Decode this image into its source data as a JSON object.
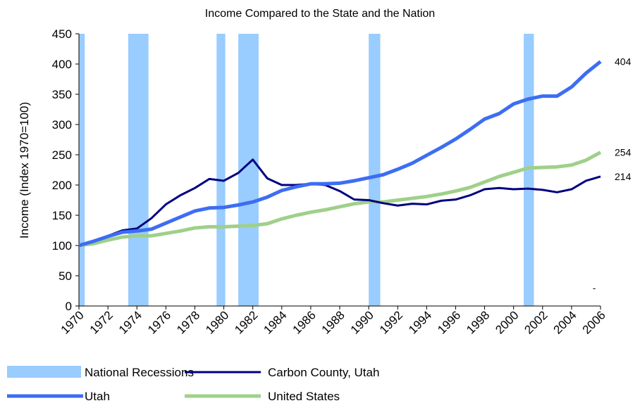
{
  "chart_data": {
    "type": "line",
    "title": "Income Compared to the State and the Nation",
    "y_label": "Income (Index 1970=100)",
    "x": [
      1970,
      1971,
      1972,
      1973,
      1974,
      1975,
      1976,
      1977,
      1978,
      1979,
      1980,
      1981,
      1982,
      1983,
      1984,
      1985,
      1986,
      1987,
      1988,
      1989,
      1990,
      1991,
      1992,
      1993,
      1994,
      1995,
      1996,
      1997,
      1998,
      1999,
      2000,
      2001,
      2002,
      2003,
      2004,
      2005,
      2006
    ],
    "xlim": [
      1970,
      2006
    ],
    "xticks": [
      1970,
      1972,
      1974,
      1976,
      1978,
      1980,
      1982,
      1984,
      1986,
      1988,
      1990,
      1992,
      1994,
      1996,
      1998,
      2000,
      2002,
      2004,
      2006
    ],
    "ylim": [
      0,
      450
    ],
    "yticks": [
      0,
      50,
      100,
      150,
      200,
      250,
      300,
      350,
      400,
      450
    ],
    "grid": false,
    "legend": "bottom",
    "recessions": {
      "name": "National Recessions",
      "color": "#99ccff",
      "ranges": [
        [
          1970,
          1970.4
        ],
        [
          1973.4,
          1974.8
        ],
        [
          1979.5,
          1980.1
        ],
        [
          1981,
          1982.4
        ],
        [
          1990,
          1990.8
        ],
        [
          2000.7,
          2001.4
        ]
      ]
    },
    "series": [
      {
        "name": "Carbon County, Utah",
        "color": "#000080",
        "width": 3,
        "values": [
          100,
          107,
          116,
          125,
          128,
          145,
          168,
          183,
          195,
          210,
          207,
          220,
          242,
          211,
          200,
          200,
          202,
          200,
          190,
          176,
          175,
          170,
          166,
          169,
          168,
          174,
          176,
          183,
          193,
          195,
          193,
          194,
          192,
          188,
          193,
          207,
          214
        ]
      },
      {
        "name": "Utah",
        "color": "#3d6df2",
        "width": 5,
        "values": [
          100,
          107,
          115,
          122,
          124,
          127,
          137,
          147,
          157,
          162,
          163,
          167,
          172,
          180,
          191,
          197,
          202,
          202,
          203,
          207,
          212,
          217,
          226,
          236,
          249,
          262,
          276,
          292,
          309,
          318,
          334,
          342,
          347,
          347,
          362,
          385,
          404
        ]
      },
      {
        "name": "United States",
        "color": "#9fd08a",
        "width": 5,
        "values": [
          100,
          103,
          109,
          114,
          116,
          116,
          120,
          124,
          129,
          131,
          131,
          132,
          133,
          136,
          144,
          150,
          155,
          159,
          164,
          169,
          172,
          172,
          175,
          178,
          181,
          185,
          190,
          196,
          205,
          214,
          221,
          228,
          229,
          230,
          233,
          241,
          254
        ]
      }
    ],
    "annotations": [
      "-"
    ]
  }
}
